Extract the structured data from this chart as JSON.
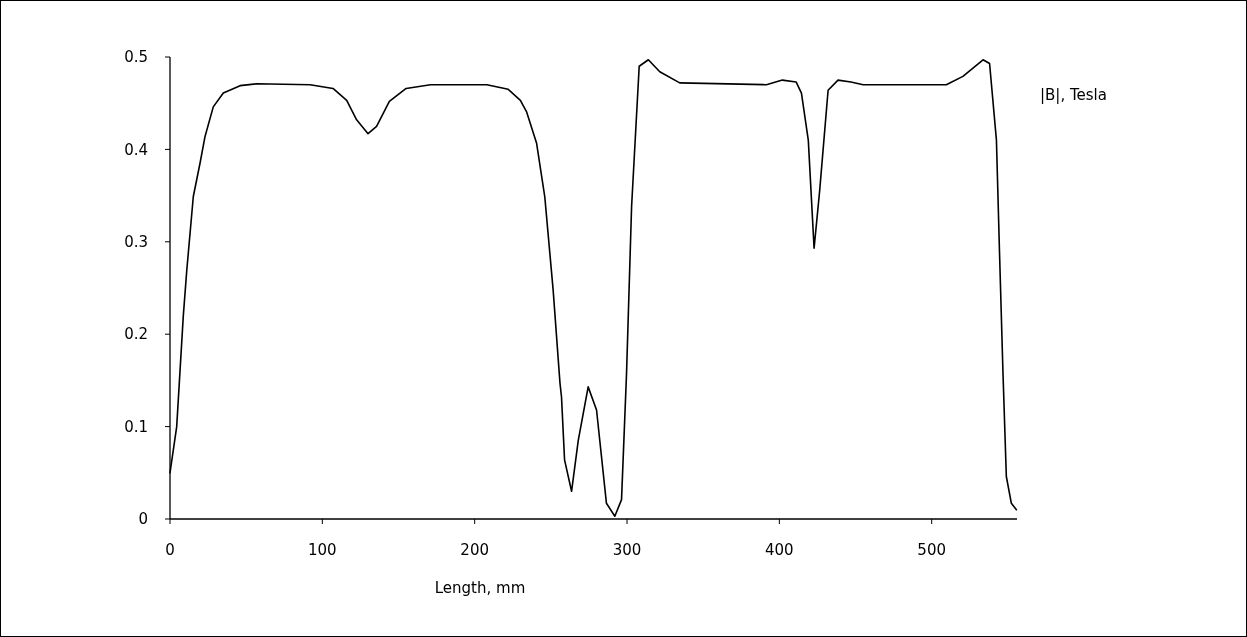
{
  "chart_data": {
    "type": "line",
    "xlabel": "Length, mm",
    "xlim": [
      0,
      556
    ],
    "xticks": [
      0,
      100,
      200,
      300,
      400,
      500
    ],
    "ylim": [
      0,
      0.5
    ],
    "yticks": [
      0,
      0.1,
      0.2,
      0.3,
      0.4,
      0.5
    ],
    "grid": false,
    "legend": "top right",
    "marker": "none",
    "line_style": "solid",
    "series": [
      {
        "name": "|B|, Tesla",
        "color": "#000000",
        "x": [
          0,
          4.4,
          8.7,
          11,
          15.3,
          19.7,
          23,
          28.4,
          35,
          46,
          57,
          92,
          107,
          116,
          122.5,
          130,
          135.6,
          144,
          155,
          171,
          208,
          222,
          230,
          234,
          240.6,
          246,
          251.5,
          256,
          257,
          259,
          263.6,
          268,
          274.5,
          280,
          286.5,
          292,
          296.4,
          299.7,
          303,
          308,
          314,
          321.5,
          334.6,
          391.5,
          402,
          411,
          414.5,
          419,
          422.8,
          426.5,
          432,
          438.5,
          447,
          455,
          509.6,
          520.5,
          533.7,
          538,
          542.5,
          544.6,
          546.8,
          549,
          552.3,
          555.6
        ],
        "values": [
          0.05,
          0.1,
          0.219,
          0.269,
          0.349,
          0.385,
          0.414,
          0.446,
          0.461,
          0.469,
          0.471,
          0.47,
          0.466,
          0.453,
          0.432,
          0.417,
          0.425,
          0.452,
          0.466,
          0.47,
          0.47,
          0.465,
          0.453,
          0.441,
          0.407,
          0.349,
          0.248,
          0.147,
          0.132,
          0.064,
          0.03,
          0.085,
          0.143,
          0.118,
          0.017,
          0.003,
          0.021,
          0.158,
          0.338,
          0.49,
          0.497,
          0.484,
          0.472,
          0.47,
          0.475,
          0.473,
          0.461,
          0.41,
          0.293,
          0.356,
          0.464,
          0.475,
          0.473,
          0.47,
          0.47,
          0.479,
          0.497,
          0.493,
          0.41,
          0.284,
          0.158,
          0.046,
          0.017,
          0.01
        ]
      }
    ]
  }
}
